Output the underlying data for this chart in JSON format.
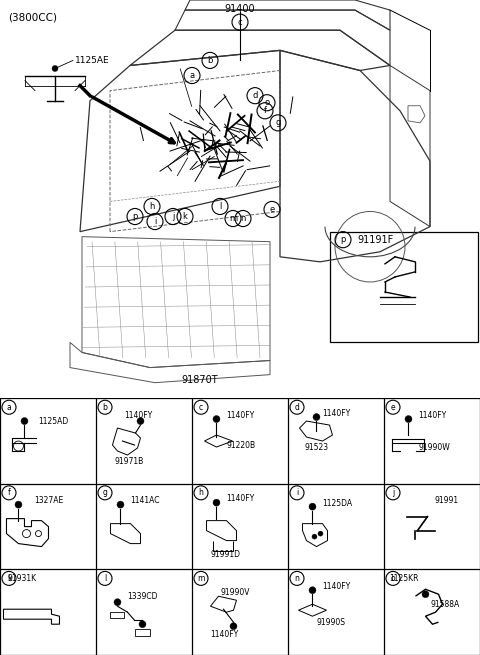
{
  "title": "(3800CC)",
  "main_part_label": "91400",
  "bottom_part_label": "91870T",
  "top_left_label": "1125AE",
  "extra_box_label": "91191F",
  "extra_box_letter": "p",
  "bg_color": "#ffffff",
  "cells": [
    {
      "letter": "a",
      "parts": [
        "1125AD"
      ],
      "row": 0,
      "col": 0
    },
    {
      "letter": "b",
      "parts": [
        "1140FY",
        "91971B"
      ],
      "row": 0,
      "col": 1
    },
    {
      "letter": "c",
      "parts": [
        "1140FY",
        "91220B"
      ],
      "row": 0,
      "col": 2
    },
    {
      "letter": "d",
      "parts": [
        "1140FY",
        "91523"
      ],
      "row": 0,
      "col": 3
    },
    {
      "letter": "e",
      "parts": [
        "1140FY",
        "91990W"
      ],
      "row": 0,
      "col": 4
    },
    {
      "letter": "f",
      "parts": [
        "1327AE"
      ],
      "row": 1,
      "col": 0
    },
    {
      "letter": "g",
      "parts": [
        "1141AC"
      ],
      "row": 1,
      "col": 1
    },
    {
      "letter": "h",
      "parts": [
        "1140FY",
        "91991D"
      ],
      "row": 1,
      "col": 2
    },
    {
      "letter": "i",
      "parts": [
        "1125DA"
      ],
      "row": 1,
      "col": 3
    },
    {
      "letter": "j",
      "parts": [
        "91991"
      ],
      "row": 1,
      "col": 4
    },
    {
      "letter": "k",
      "parts": [
        "91931K"
      ],
      "row": 2,
      "col": 0
    },
    {
      "letter": "l",
      "parts": [
        "1339CD"
      ],
      "row": 2,
      "col": 1
    },
    {
      "letter": "m",
      "parts": [
        "91990V",
        "1140FY"
      ],
      "row": 2,
      "col": 2
    },
    {
      "letter": "n",
      "parts": [
        "1140FY",
        "91990S"
      ],
      "row": 2,
      "col": 3
    },
    {
      "letter": "o",
      "parts": [
        "91588A",
        "1125KR"
      ],
      "row": 2,
      "col": 4
    }
  ],
  "grid_cols": 5,
  "grid_rows": 3
}
